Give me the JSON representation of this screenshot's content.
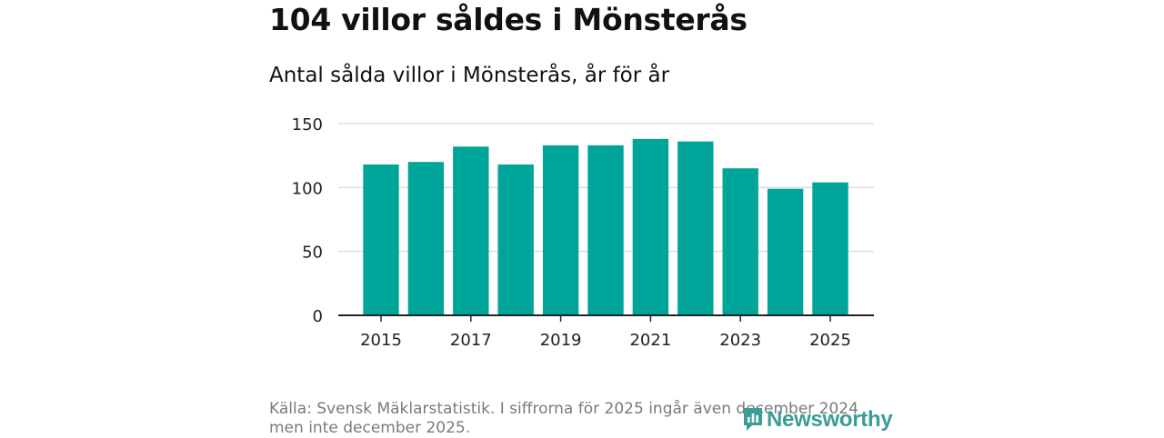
{
  "header": {
    "title": "104 villor såldes i Mönsterås",
    "subtitle": "Antal sålda villor i Mönsterås, år för år"
  },
  "chart_data": {
    "type": "bar",
    "categories": [
      "2015",
      "2016",
      "2017",
      "2018",
      "2019",
      "2020",
      "2021",
      "2022",
      "2023",
      "2024",
      "2025"
    ],
    "values": [
      118,
      120,
      132,
      118,
      133,
      133,
      138,
      136,
      115,
      99,
      104
    ],
    "x_tick_labels": [
      "2015",
      "2017",
      "2019",
      "2021",
      "2023",
      "2025"
    ],
    "y_ticks": [
      0,
      50,
      100,
      150
    ],
    "ylim": [
      0,
      150
    ],
    "title": "104 villor såldes i Mönsterås",
    "xlabel": "",
    "ylabel": "",
    "grid": true,
    "bar_color": "#00a59a"
  },
  "footer": {
    "source": "Källa: Svensk Mäklarstatistik. I siffrorna för 2025 ingår även december 2024 men inte december 2025.",
    "logo_text": "Newsworthy",
    "logo_color": "#3a9d98"
  }
}
